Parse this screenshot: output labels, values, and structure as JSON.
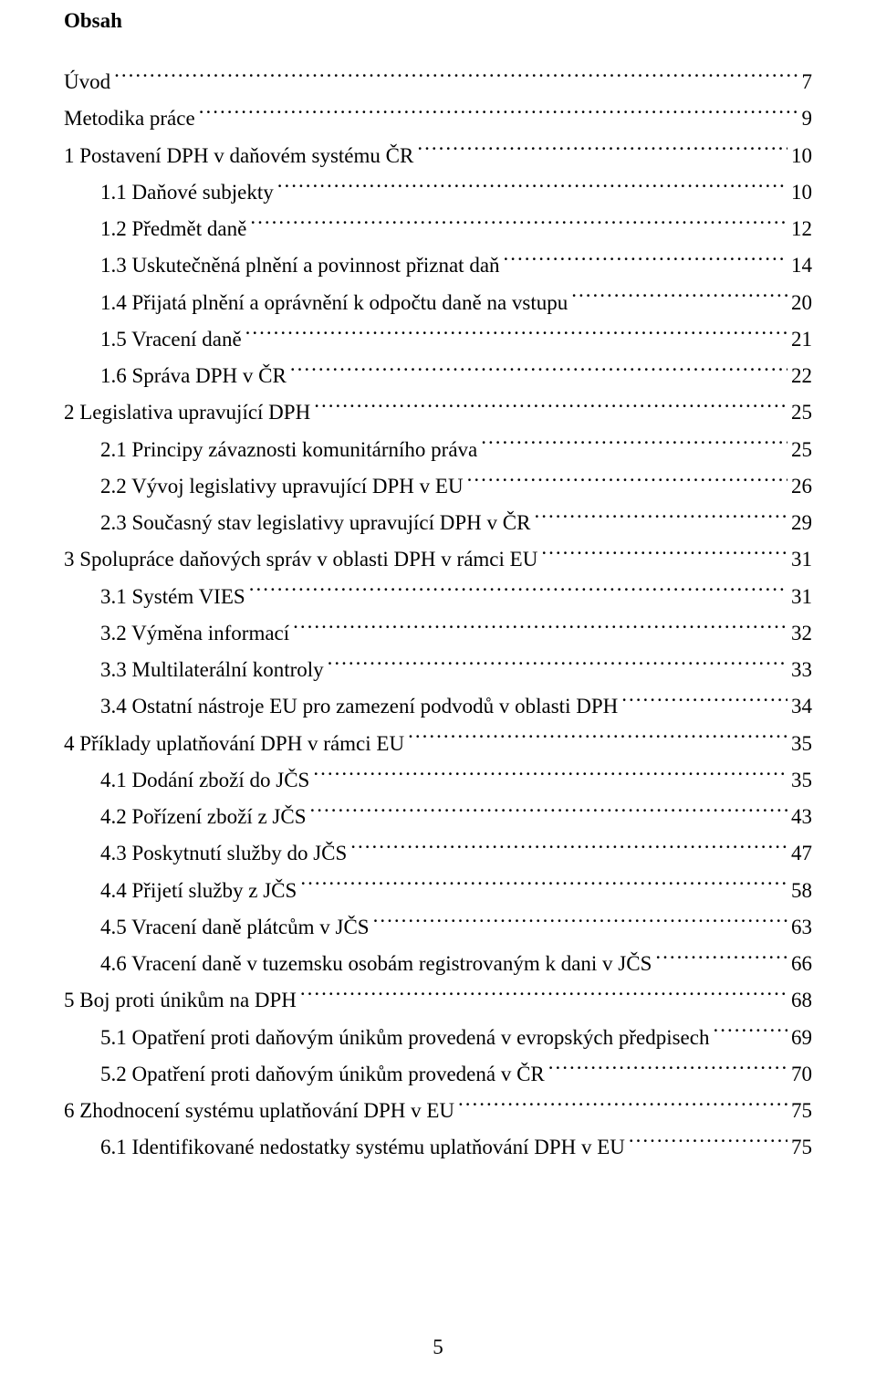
{
  "doc": {
    "title": "Obsah",
    "page_number": "5",
    "font_family": "Times New Roman",
    "title_fontsize": 23,
    "line_fontsize": 23,
    "text_color": "#000000",
    "background_color": "#ffffff",
    "entries": [
      {
        "indent": 0,
        "label": "Úvod",
        "page": "7"
      },
      {
        "indent": 0,
        "label": "Metodika práce",
        "page": "9"
      },
      {
        "indent": 0,
        "label": "1    Postavení DPH v daňovém systému ČR",
        "page": "10"
      },
      {
        "indent": 1,
        "label": "1.1    Daňové subjekty",
        "page": "10"
      },
      {
        "indent": 1,
        "label": "1.2    Předmět daně",
        "page": "12"
      },
      {
        "indent": 1,
        "label": "1.3    Uskutečněná plnění a povinnost přiznat daň",
        "page": "14"
      },
      {
        "indent": 1,
        "label": "1.4    Přijatá plnění a oprávnění k odpočtu daně na vstupu",
        "page": "20"
      },
      {
        "indent": 1,
        "label": "1.5    Vracení daně",
        "page": "21"
      },
      {
        "indent": 1,
        "label": "1.6    Správa DPH v ČR",
        "page": "22"
      },
      {
        "indent": 0,
        "label": "2    Legislativa upravující DPH",
        "page": "25"
      },
      {
        "indent": 1,
        "label": "2.1    Principy závaznosti komunitárního práva",
        "page": "25"
      },
      {
        "indent": 1,
        "label": "2.2    Vývoj legislativy upravující DPH v EU",
        "page": "26"
      },
      {
        "indent": 1,
        "label": "2.3    Současný stav legislativy upravující DPH v ČR",
        "page": "29"
      },
      {
        "indent": 0,
        "label": "3    Spolupráce daňových správ v oblasti DPH v rámci EU",
        "page": "31"
      },
      {
        "indent": 1,
        "label": "3.1    Systém VIES",
        "page": "31"
      },
      {
        "indent": 1,
        "label": "3.2    Výměna informací",
        "page": "32"
      },
      {
        "indent": 1,
        "label": "3.3    Multilaterální kontroly",
        "page": "33"
      },
      {
        "indent": 1,
        "label": "3.4    Ostatní nástroje EU pro zamezení podvodů v oblasti DPH",
        "page": "34"
      },
      {
        "indent": 0,
        "label": "4    Příklady uplatňování DPH v rámci EU",
        "page": "35"
      },
      {
        "indent": 1,
        "label": "4.1    Dodání zboží do JČS",
        "page": "35"
      },
      {
        "indent": 1,
        "label": "4.2    Pořízení zboží z JČS",
        "page": "43"
      },
      {
        "indent": 1,
        "label": "4.3    Poskytnutí služby do JČS",
        "page": "47"
      },
      {
        "indent": 1,
        "label": "4.4    Přijetí služby z JČS",
        "page": "58"
      },
      {
        "indent": 1,
        "label": "4.5    Vracení daně plátcům v JČS",
        "page": "63"
      },
      {
        "indent": 1,
        "label": "4.6    Vracení daně v tuzemsku osobám registrovaným k dani v JČS",
        "page": "66"
      },
      {
        "indent": 0,
        "label": "5    Boj proti únikům na DPH",
        "page": "68"
      },
      {
        "indent": 1,
        "label": "5.1    Opatření proti daňovým únikům provedená v evropských předpisech",
        "page": "69"
      },
      {
        "indent": 1,
        "label": "5.2    Opatření proti daňovým únikům provedená v ČR",
        "page": "70"
      },
      {
        "indent": 0,
        "label": "6    Zhodnocení systému uplatňování DPH v EU",
        "page": "75"
      },
      {
        "indent": 1,
        "label": "6.1    Identifikované nedostatky systému uplatňování DPH v EU",
        "page": "75"
      }
    ]
  }
}
